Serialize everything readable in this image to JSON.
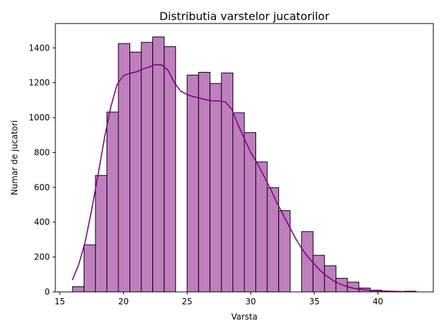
{
  "chart_data": {
    "type": "bar",
    "subtype": "histogram-with-kde",
    "title": "Distributia varstelor jucatorilor",
    "xlabel": "Varsta",
    "ylabel": "Numar de jucatori",
    "xlim": [
      14.65,
      44.35
    ],
    "ylim": [
      0,
      1540
    ],
    "xticks": [
      15,
      20,
      25,
      30,
      35,
      40
    ],
    "yticks": [
      0,
      200,
      400,
      600,
      800,
      1000,
      1200,
      1400
    ],
    "grid": false,
    "legend": "none",
    "bar_color": "#bf7fbf",
    "edge_color": "#000000",
    "kde_color": "#800080",
    "bins": [
      {
        "start": 16.0,
        "end": 16.9,
        "count": 30
      },
      {
        "start": 16.9,
        "end": 17.8,
        "count": 270
      },
      {
        "start": 17.8,
        "end": 18.7,
        "count": 668
      },
      {
        "start": 18.7,
        "end": 19.6,
        "count": 1032
      },
      {
        "start": 19.6,
        "end": 20.5,
        "count": 1425
      },
      {
        "start": 20.5,
        "end": 21.4,
        "count": 1376
      },
      {
        "start": 21.4,
        "end": 22.3,
        "count": 1432
      },
      {
        "start": 22.3,
        "end": 23.2,
        "count": 1463
      },
      {
        "start": 23.2,
        "end": 24.1,
        "count": 1408
      },
      {
        "start": 24.1,
        "end": 25.0,
        "count": 0
      },
      {
        "start": 25.0,
        "end": 25.9,
        "count": 1244
      },
      {
        "start": 25.9,
        "end": 26.8,
        "count": 1260
      },
      {
        "start": 26.8,
        "end": 27.7,
        "count": 1196
      },
      {
        "start": 27.7,
        "end": 28.6,
        "count": 1256
      },
      {
        "start": 28.6,
        "end": 29.5,
        "count": 1028
      },
      {
        "start": 29.5,
        "end": 30.4,
        "count": 914
      },
      {
        "start": 30.4,
        "end": 31.3,
        "count": 746
      },
      {
        "start": 31.3,
        "end": 32.2,
        "count": 598
      },
      {
        "start": 32.2,
        "end": 33.1,
        "count": 466
      },
      {
        "start": 33.1,
        "end": 34.0,
        "count": 0
      },
      {
        "start": 34.0,
        "end": 34.9,
        "count": 346
      },
      {
        "start": 34.9,
        "end": 35.8,
        "count": 210
      },
      {
        "start": 35.8,
        "end": 36.7,
        "count": 150
      },
      {
        "start": 36.7,
        "end": 37.6,
        "count": 78
      },
      {
        "start": 37.6,
        "end": 38.5,
        "count": 56
      },
      {
        "start": 38.5,
        "end": 39.4,
        "count": 22
      },
      {
        "start": 39.4,
        "end": 40.3,
        "count": 10
      },
      {
        "start": 40.3,
        "end": 41.2,
        "count": 0
      },
      {
        "start": 41.2,
        "end": 42.1,
        "count": 0
      },
      {
        "start": 42.1,
        "end": 43.0,
        "count": 4
      }
    ],
    "kde": {
      "x": [
        16.0,
        16.5,
        17.0,
        17.5,
        18.0,
        18.5,
        19.0,
        19.5,
        20.0,
        20.5,
        21.0,
        21.5,
        22.0,
        22.5,
        23.0,
        23.5,
        24.0,
        24.5,
        25.0,
        25.5,
        26.0,
        26.5,
        27.0,
        27.5,
        28.0,
        28.5,
        29.0,
        29.5,
        30.0,
        30.5,
        31.0,
        31.5,
        32.0,
        32.5,
        33.0,
        33.5,
        34.0,
        34.5,
        35.0,
        35.5,
        36.0,
        36.5,
        37.0,
        37.5,
        38.0,
        38.5,
        39.0,
        39.5,
        40.0,
        40.5,
        41.0,
        41.5,
        42.0,
        42.5,
        43.0
      ],
      "y": [
        70,
        160,
        290,
        470,
        670,
        880,
        1060,
        1190,
        1240,
        1255,
        1262,
        1278,
        1290,
        1304,
        1302,
        1272,
        1200,
        1152,
        1132,
        1120,
        1112,
        1102,
        1096,
        1096,
        1090,
        1050,
        960,
        880,
        800,
        740,
        670,
        600,
        520,
        450,
        380,
        310,
        250,
        200,
        160,
        120,
        90,
        64,
        46,
        32,
        22,
        15,
        11,
        8,
        6,
        5,
        4,
        3,
        2,
        2,
        1
      ]
    }
  }
}
